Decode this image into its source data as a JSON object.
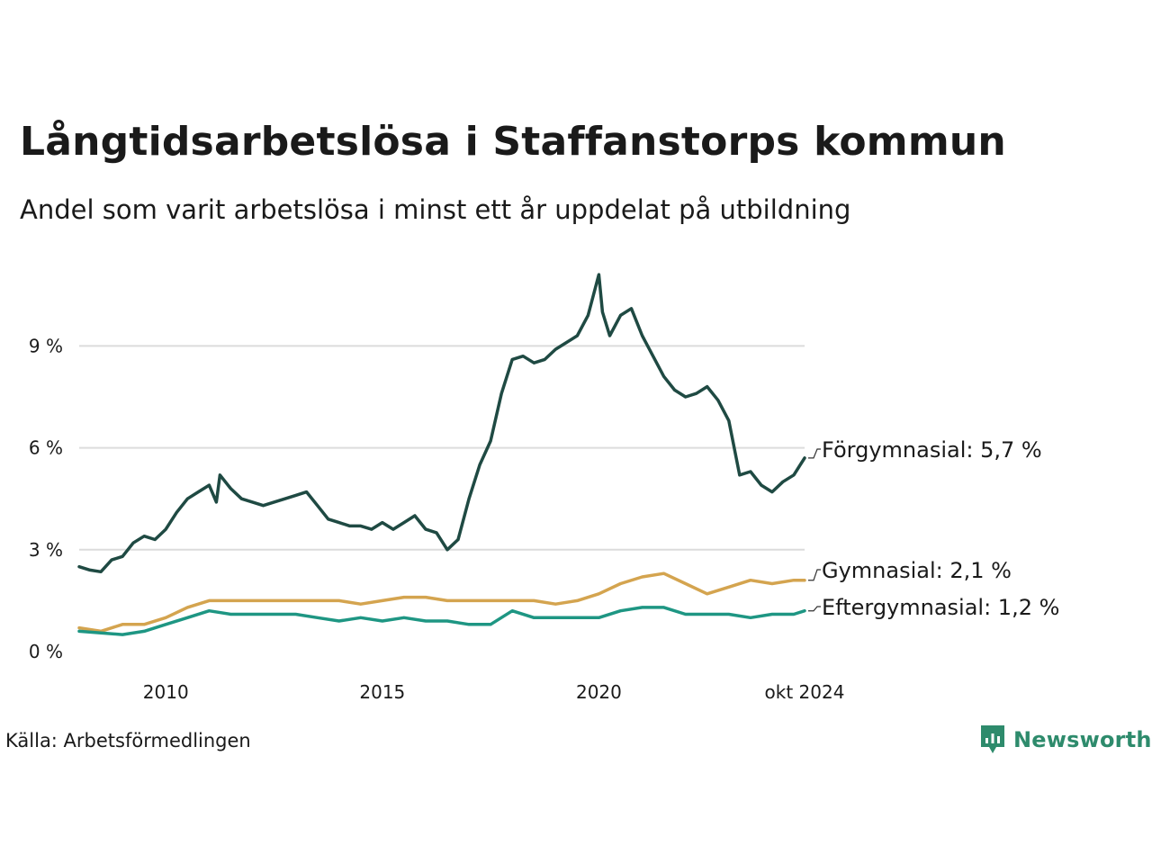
{
  "title": "Långtidsarbetslösa i Staffanstorps kommun",
  "subtitle": "Andel som varit arbetslösa i minst ett år uppdelat på utbildning",
  "source": "Källa: Arbetsförmedlingen",
  "logo": {
    "name": "Newsworthy",
    "icon": "newsworthy-logo-icon",
    "color": "#2e8b6c"
  },
  "chart_data": {
    "type": "line",
    "title": "Långtidsarbetslösa i Staffanstorps kommun",
    "subtitle": "Andel som varit arbetslösa i minst ett år uppdelat på utbildning",
    "x_range": [
      "2008-01",
      "2024-10"
    ],
    "ylim": [
      0,
      11.5
    ],
    "grid": true,
    "y_ticks": [
      {
        "value": 0,
        "label": "0 %"
      },
      {
        "value": 3,
        "label": "3 %"
      },
      {
        "value": 6,
        "label": "6 %"
      },
      {
        "value": 9,
        "label": "9 %"
      }
    ],
    "x_ticks": [
      {
        "value": "2010-01",
        "label": "2010"
      },
      {
        "value": "2015-01",
        "label": "2015"
      },
      {
        "value": "2020-01",
        "label": "2020"
      },
      {
        "value": "2024-10",
        "label": "okt 2024"
      }
    ],
    "series": [
      {
        "name": "Förgymnasial",
        "end_label": "Förgymnasial: 5,7 %",
        "color": "#1f4a43",
        "points": [
          [
            "2008-01",
            2.5
          ],
          [
            "2008-04",
            2.4
          ],
          [
            "2008-07",
            2.35
          ],
          [
            "2008-10",
            2.7
          ],
          [
            "2009-01",
            2.8
          ],
          [
            "2009-04",
            3.2
          ],
          [
            "2009-07",
            3.4
          ],
          [
            "2009-10",
            3.3
          ],
          [
            "2010-01",
            3.6
          ],
          [
            "2010-04",
            4.1
          ],
          [
            "2010-07",
            4.5
          ],
          [
            "2010-10",
            4.7
          ],
          [
            "2011-01",
            4.9
          ],
          [
            "2011-03",
            4.4
          ],
          [
            "2011-04",
            5.2
          ],
          [
            "2011-07",
            4.8
          ],
          [
            "2011-10",
            4.5
          ],
          [
            "2012-01",
            4.4
          ],
          [
            "2012-04",
            4.3
          ],
          [
            "2012-07",
            4.4
          ],
          [
            "2012-10",
            4.5
          ],
          [
            "2013-01",
            4.6
          ],
          [
            "2013-04",
            4.7
          ],
          [
            "2013-07",
            4.3
          ],
          [
            "2013-10",
            3.9
          ],
          [
            "2014-01",
            3.8
          ],
          [
            "2014-04",
            3.7
          ],
          [
            "2014-07",
            3.7
          ],
          [
            "2014-10",
            3.6
          ],
          [
            "2015-01",
            3.8
          ],
          [
            "2015-04",
            3.6
          ],
          [
            "2015-07",
            3.8
          ],
          [
            "2015-10",
            4.0
          ],
          [
            "2016-01",
            3.6
          ],
          [
            "2016-04",
            3.5
          ],
          [
            "2016-07",
            3.0
          ],
          [
            "2016-10",
            3.3
          ],
          [
            "2017-01",
            4.5
          ],
          [
            "2017-04",
            5.5
          ],
          [
            "2017-07",
            6.2
          ],
          [
            "2017-10",
            7.6
          ],
          [
            "2018-01",
            8.6
          ],
          [
            "2018-04",
            8.7
          ],
          [
            "2018-07",
            8.5
          ],
          [
            "2018-10",
            8.6
          ],
          [
            "2019-01",
            8.9
          ],
          [
            "2019-04",
            9.1
          ],
          [
            "2019-07",
            9.3
          ],
          [
            "2019-10",
            9.9
          ],
          [
            "2020-01",
            11.1
          ],
          [
            "2020-02",
            10.0
          ],
          [
            "2020-04",
            9.3
          ],
          [
            "2020-07",
            9.9
          ],
          [
            "2020-10",
            10.1
          ],
          [
            "2021-01",
            9.3
          ],
          [
            "2021-04",
            8.7
          ],
          [
            "2021-07",
            8.1
          ],
          [
            "2021-10",
            7.7
          ],
          [
            "2022-01",
            7.5
          ],
          [
            "2022-04",
            7.6
          ],
          [
            "2022-07",
            7.8
          ],
          [
            "2022-10",
            7.4
          ],
          [
            "2023-01",
            6.8
          ],
          [
            "2023-04",
            5.2
          ],
          [
            "2023-07",
            5.3
          ],
          [
            "2023-10",
            4.9
          ],
          [
            "2024-01",
            4.7
          ],
          [
            "2024-04",
            5.0
          ],
          [
            "2024-07",
            5.2
          ],
          [
            "2024-10",
            5.7
          ]
        ]
      },
      {
        "name": "Gymnasial",
        "end_label": "Gymnasial: 2,1 %",
        "color": "#d4a44f",
        "points": [
          [
            "2008-01",
            0.7
          ],
          [
            "2008-07",
            0.6
          ],
          [
            "2009-01",
            0.8
          ],
          [
            "2009-07",
            0.8
          ],
          [
            "2010-01",
            1.0
          ],
          [
            "2010-07",
            1.3
          ],
          [
            "2011-01",
            1.5
          ],
          [
            "2011-07",
            1.5
          ],
          [
            "2012-01",
            1.5
          ],
          [
            "2012-07",
            1.5
          ],
          [
            "2013-01",
            1.5
          ],
          [
            "2013-07",
            1.5
          ],
          [
            "2014-01",
            1.5
          ],
          [
            "2014-07",
            1.4
          ],
          [
            "2015-01",
            1.5
          ],
          [
            "2015-07",
            1.6
          ],
          [
            "2016-01",
            1.6
          ],
          [
            "2016-07",
            1.5
          ],
          [
            "2017-01",
            1.5
          ],
          [
            "2017-07",
            1.5
          ],
          [
            "2018-01",
            1.5
          ],
          [
            "2018-07",
            1.5
          ],
          [
            "2019-01",
            1.4
          ],
          [
            "2019-07",
            1.5
          ],
          [
            "2020-01",
            1.7
          ],
          [
            "2020-07",
            2.0
          ],
          [
            "2021-01",
            2.2
          ],
          [
            "2021-07",
            2.3
          ],
          [
            "2022-01",
            2.0
          ],
          [
            "2022-07",
            1.7
          ],
          [
            "2023-01",
            1.9
          ],
          [
            "2023-07",
            2.1
          ],
          [
            "2024-01",
            2.0
          ],
          [
            "2024-07",
            2.1
          ],
          [
            "2024-10",
            2.1
          ]
        ]
      },
      {
        "name": "Eftergymnasial",
        "end_label": "Eftergymnasial: 1,2 %",
        "color": "#1e9683",
        "points": [
          [
            "2008-01",
            0.6
          ],
          [
            "2008-07",
            0.55
          ],
          [
            "2009-01",
            0.5
          ],
          [
            "2009-07",
            0.6
          ],
          [
            "2010-01",
            0.8
          ],
          [
            "2010-07",
            1.0
          ],
          [
            "2011-01",
            1.2
          ],
          [
            "2011-07",
            1.1
          ],
          [
            "2012-01",
            1.1
          ],
          [
            "2012-07",
            1.1
          ],
          [
            "2013-01",
            1.1
          ],
          [
            "2013-07",
            1.0
          ],
          [
            "2014-01",
            0.9
          ],
          [
            "2014-07",
            1.0
          ],
          [
            "2015-01",
            0.9
          ],
          [
            "2015-07",
            1.0
          ],
          [
            "2016-01",
            0.9
          ],
          [
            "2016-07",
            0.9
          ],
          [
            "2017-01",
            0.8
          ],
          [
            "2017-07",
            0.8
          ],
          [
            "2018-01",
            1.2
          ],
          [
            "2018-07",
            1.0
          ],
          [
            "2019-01",
            1.0
          ],
          [
            "2019-07",
            1.0
          ],
          [
            "2020-01",
            1.0
          ],
          [
            "2020-07",
            1.2
          ],
          [
            "2021-01",
            1.3
          ],
          [
            "2021-07",
            1.3
          ],
          [
            "2022-01",
            1.1
          ],
          [
            "2022-07",
            1.1
          ],
          [
            "2023-01",
            1.1
          ],
          [
            "2023-07",
            1.0
          ],
          [
            "2024-01",
            1.1
          ],
          [
            "2024-07",
            1.1
          ],
          [
            "2024-10",
            1.2
          ]
        ]
      }
    ]
  }
}
